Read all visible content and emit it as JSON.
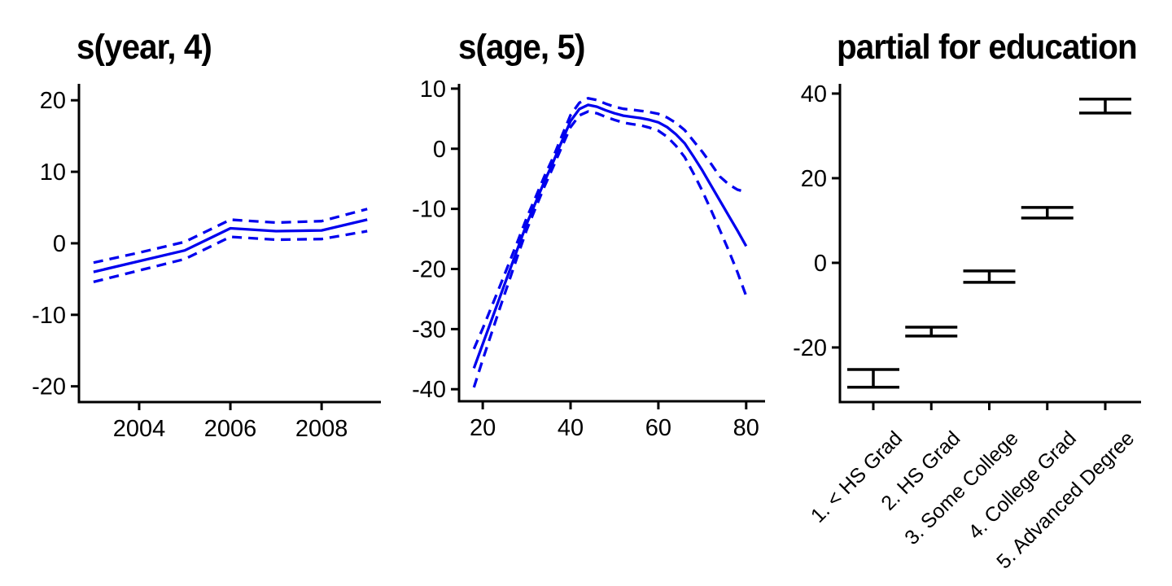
{
  "colors": {
    "curve": "#0000EE",
    "axis": "#000000",
    "text": "#000000",
    "background": "#FFFFFF"
  },
  "chart_data": [
    {
      "type": "line",
      "title": "s(year, 4)",
      "xlabel": "",
      "ylabel": "",
      "x": [
        2003,
        2004,
        2005,
        2006,
        2007,
        2008,
        2009
      ],
      "series": [
        {
          "name": "fit",
          "style": "solid",
          "values": [
            -4.0,
            -2.5,
            -1.0,
            2.1,
            1.7,
            1.8,
            3.3
          ]
        },
        {
          "name": "upper-ci",
          "style": "dashed",
          "values": [
            -2.7,
            -1.3,
            0.2,
            3.3,
            2.9,
            3.1,
            4.8
          ]
        },
        {
          "name": "lower-ci",
          "style": "dashed",
          "values": [
            -5.4,
            -3.8,
            -2.2,
            0.9,
            0.5,
            0.6,
            1.7
          ]
        }
      ],
      "x_ticks": [
        2004,
        2006,
        2008
      ],
      "y_ticks": [
        20,
        10,
        0,
        -10,
        -20
      ],
      "xlim": [
        2002.68,
        2009.3
      ],
      "ylim": [
        -22.2,
        22.3
      ],
      "grid": false,
      "legend": false
    },
    {
      "type": "line",
      "title": "s(age, 5)",
      "xlabel": "",
      "ylabel": "",
      "x": [
        18,
        20,
        22,
        24,
        26,
        28,
        30,
        32,
        34,
        36,
        38,
        40,
        42,
        44,
        46,
        48,
        50,
        52,
        54,
        56,
        58,
        60,
        62,
        64,
        66,
        68,
        70,
        72,
        74,
        76,
        78,
        80
      ],
      "series": [
        {
          "name": "fit",
          "style": "solid",
          "values": [
            -36.5,
            -32.5,
            -28.5,
            -24.5,
            -20.5,
            -16.5,
            -12.5,
            -9.0,
            -5.5,
            -2.3,
            1.2,
            4.6,
            6.6,
            7.3,
            7.0,
            6.4,
            5.9,
            5.5,
            5.3,
            5.1,
            4.8,
            4.4,
            3.6,
            2.4,
            0.9,
            -1.3,
            -3.6,
            -6.1,
            -8.6,
            -11.1,
            -13.6,
            -16.2
          ]
        },
        {
          "name": "upper-ci",
          "style": "dashed",
          "values": [
            -33.3,
            -29.9,
            -26.3,
            -22.7,
            -19.0,
            -15.3,
            -11.5,
            -8.1,
            -4.65,
            -1.5,
            2.1,
            5.6,
            7.65,
            8.4,
            8.1,
            7.5,
            7.0,
            6.65,
            6.5,
            6.3,
            6.1,
            5.8,
            5.2,
            4.3,
            3.1,
            1.3,
            -0.5,
            -2.5,
            -4.6,
            -5.9,
            -6.8,
            -7.2
          ]
        },
        {
          "name": "lower-ci",
          "style": "dashed",
          "values": [
            -39.7,
            -35.1,
            -30.7,
            -26.3,
            -22.0,
            -17.7,
            -13.5,
            -9.9,
            -6.35,
            -3.1,
            0.3,
            3.6,
            5.55,
            6.2,
            5.9,
            5.3,
            4.8,
            4.35,
            4.1,
            3.9,
            3.5,
            3.0,
            2.0,
            0.5,
            -1.4,
            -4.1,
            -7.0,
            -10.2,
            -13.5,
            -16.9,
            -20.5,
            -24.5
          ]
        }
      ],
      "x_ticks": [
        20,
        40,
        60,
        80
      ],
      "y_ticks": [
        10,
        0,
        -10,
        -20,
        -30,
        -40
      ],
      "xlim": [
        14.6,
        84.3
      ],
      "ylim": [
        -42.0,
        10.8
      ],
      "grid": false,
      "legend": false
    },
    {
      "type": "error-bar",
      "title": "partial for education",
      "xlabel": "",
      "ylabel": "",
      "categories": [
        "1. < HS Grad",
        "2. HS Grad",
        "3. Some College",
        "4. College Grad",
        "5. Advanced Degree"
      ],
      "intervals": [
        {
          "low": -29.4,
          "high": -25.2
        },
        {
          "low": -17.3,
          "high": -15.2
        },
        {
          "low": -4.6,
          "high": -1.9
        },
        {
          "low": 10.6,
          "high": 13.1
        },
        {
          "low": 35.4,
          "high": 38.7
        }
      ],
      "y_ticks": [
        40,
        20,
        0,
        -20
      ],
      "ylim": [
        -32.9,
        42.3
      ],
      "grid": false,
      "legend": false
    }
  ]
}
